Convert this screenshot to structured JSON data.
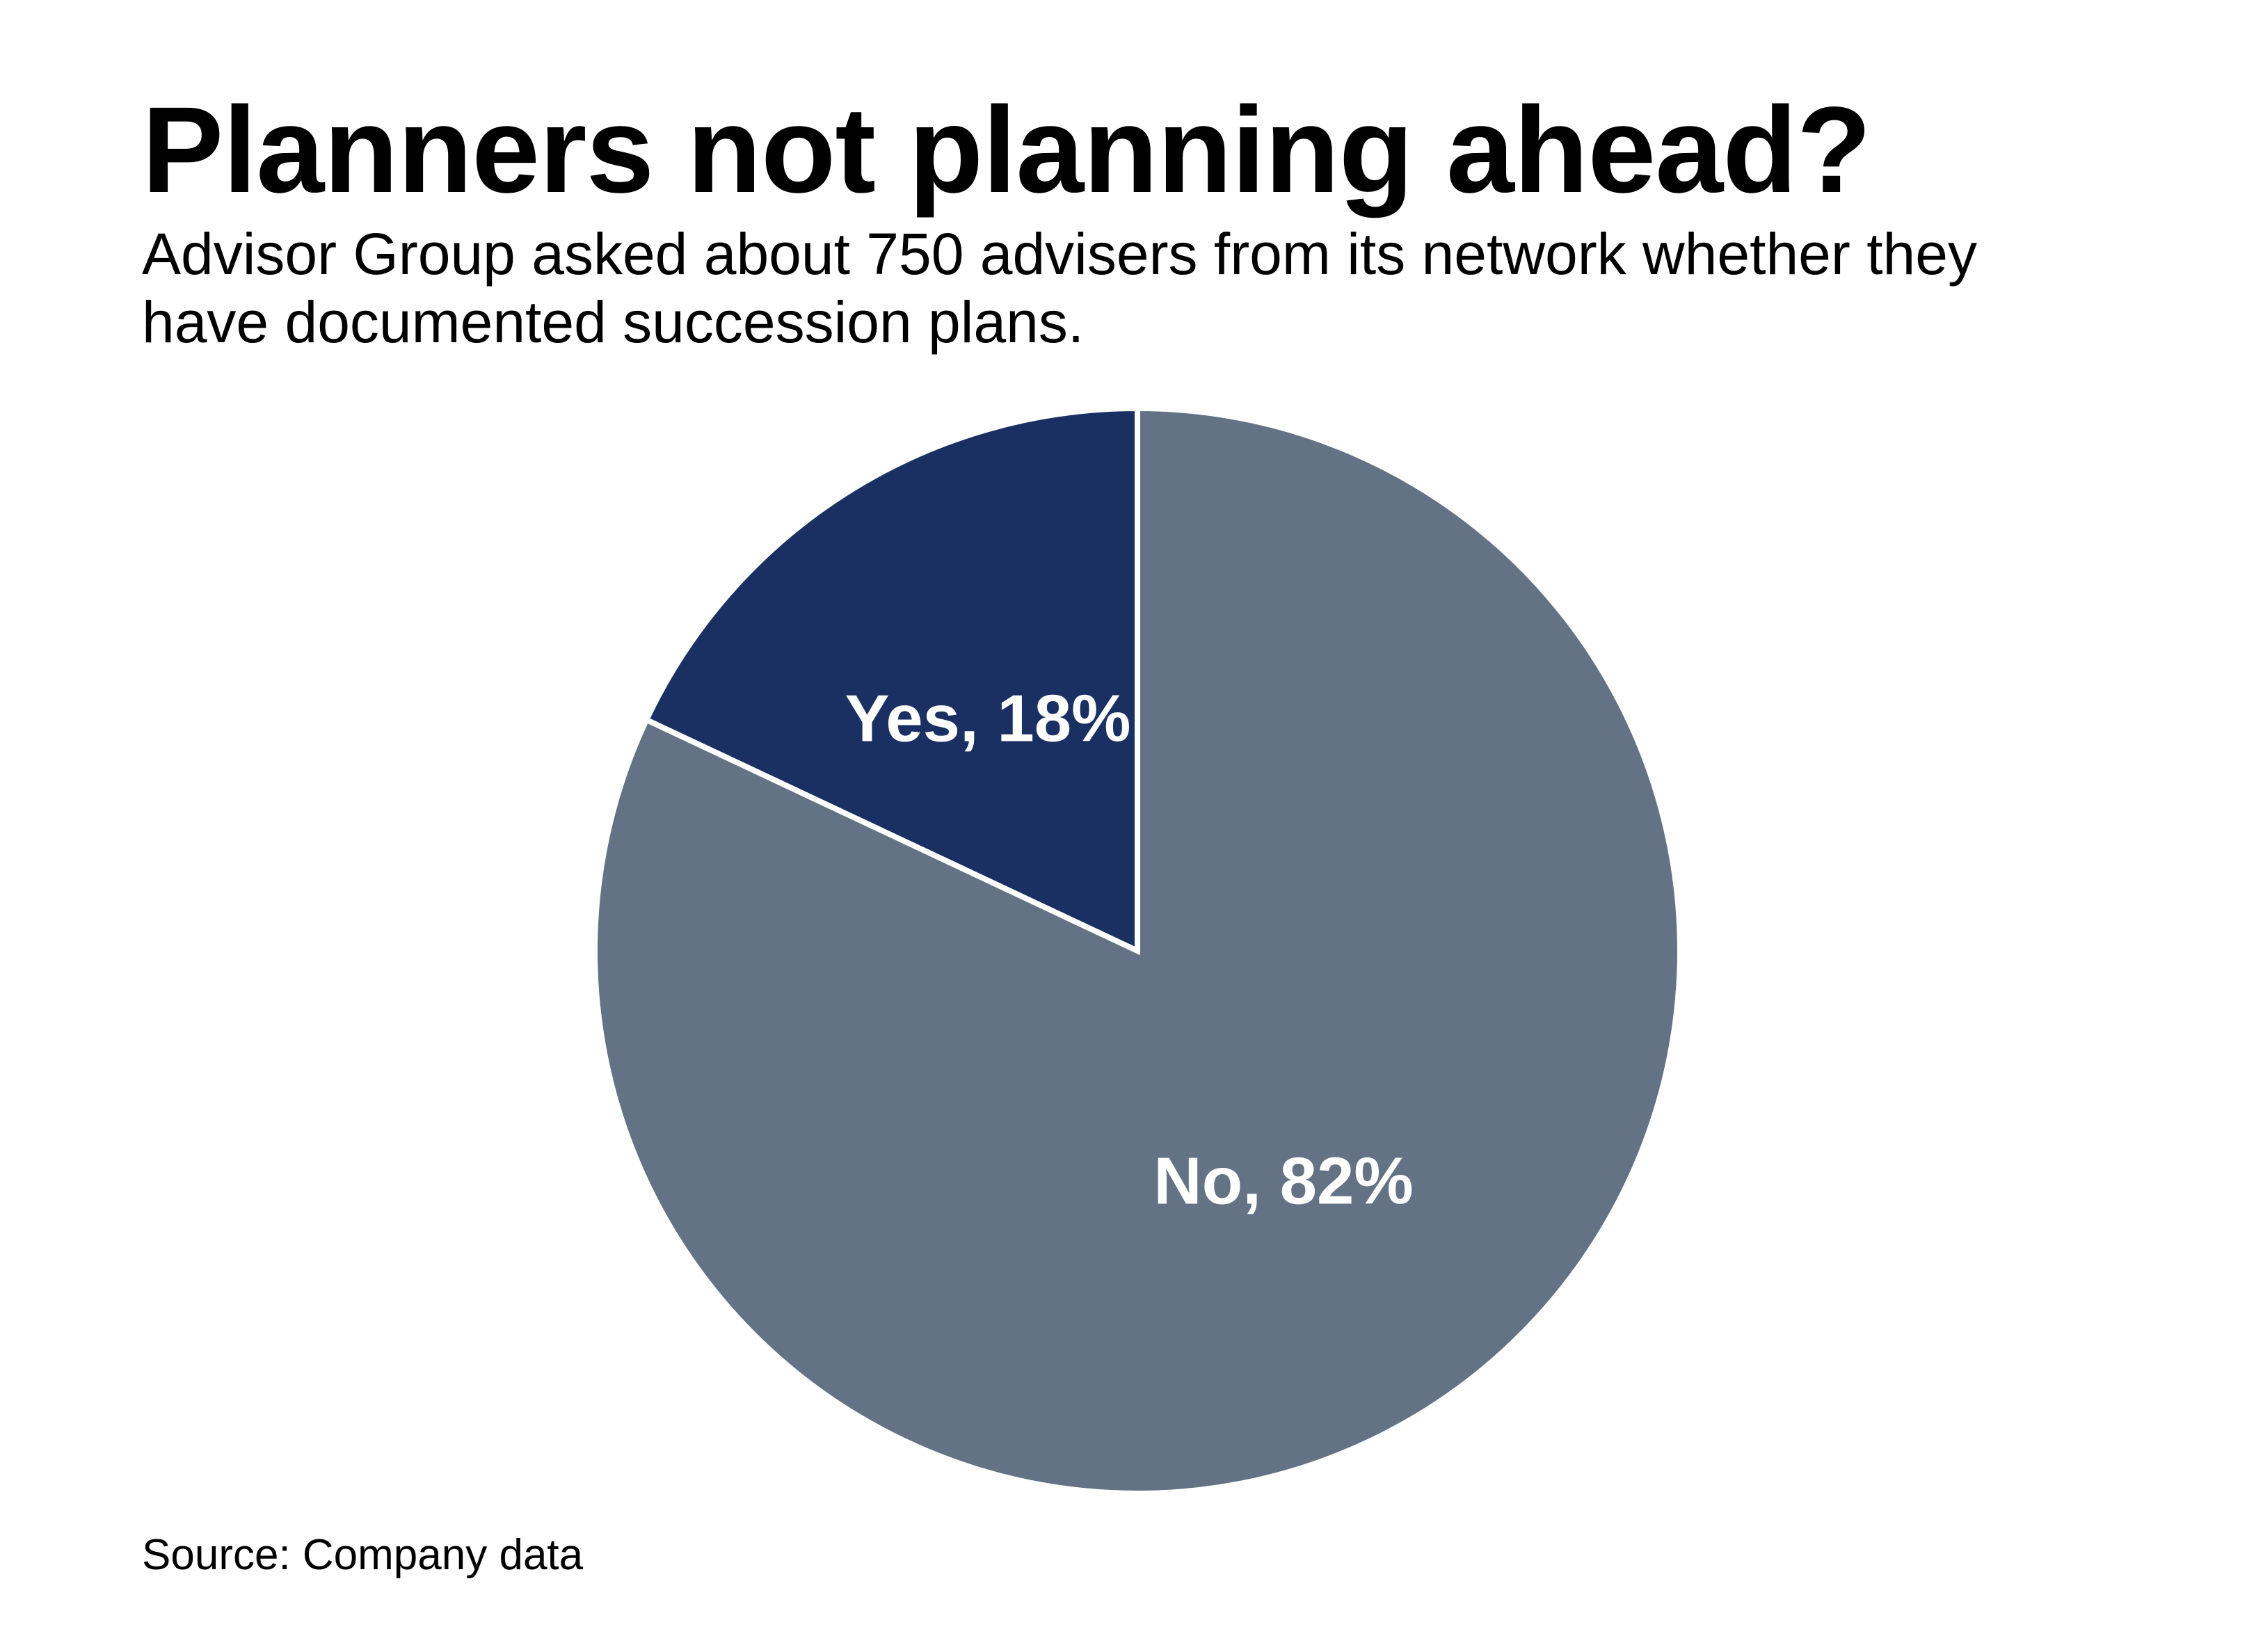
{
  "header": {
    "title": "Planners not planning ahead?",
    "subtitle": "Advisor Group asked about 750 advisers from its network whether they have documented succession plans."
  },
  "chart_data": {
    "type": "pie",
    "start_angle_deg": 0,
    "direction": "counterclockwise",
    "slices": [
      {
        "label": "Yes, 18%",
        "category": "Yes",
        "value": 18,
        "color": "#1a3062"
      },
      {
        "label": "No, 82%",
        "category": "No",
        "value": 82,
        "color": "#637284"
      }
    ],
    "slice_border_color": "#ffffff"
  },
  "footer": {
    "source": "Source: Company data"
  }
}
